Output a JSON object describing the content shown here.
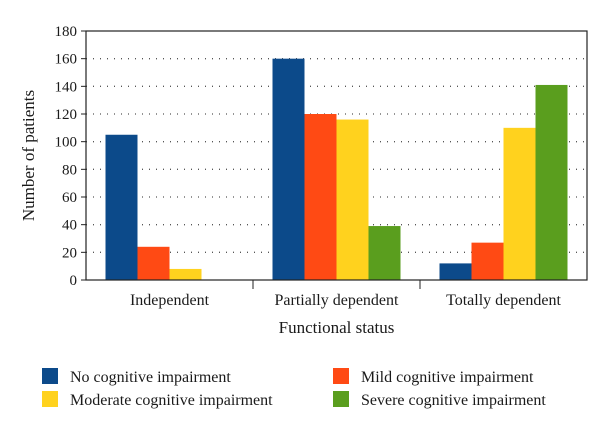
{
  "chart_data": {
    "type": "bar",
    "xlabel": "Functional status",
    "ylabel": "Number of patients",
    "ylim": [
      0,
      180
    ],
    "yticks": [
      0,
      20,
      40,
      60,
      80,
      100,
      120,
      140,
      160,
      180
    ],
    "grid": "dotted horizontal",
    "legend_position": "bottom",
    "categories": [
      "Independent",
      "Partially dependent",
      "Totally dependent"
    ],
    "series": [
      {
        "name": "No cognitive impairment",
        "color": "#0c4a8a",
        "values": [
          105,
          160,
          12
        ]
      },
      {
        "name": "Mild cognitive impairment",
        "color": "#ff4a14",
        "values": [
          24,
          120,
          27
        ]
      },
      {
        "name": "Moderate cognitive impairment",
        "color": "#ffd21e",
        "values": [
          8,
          116,
          110
        ]
      },
      {
        "name": "Severe cognitive impairment",
        "color": "#5a9e1e",
        "values": [
          0,
          39,
          141
        ]
      }
    ]
  }
}
